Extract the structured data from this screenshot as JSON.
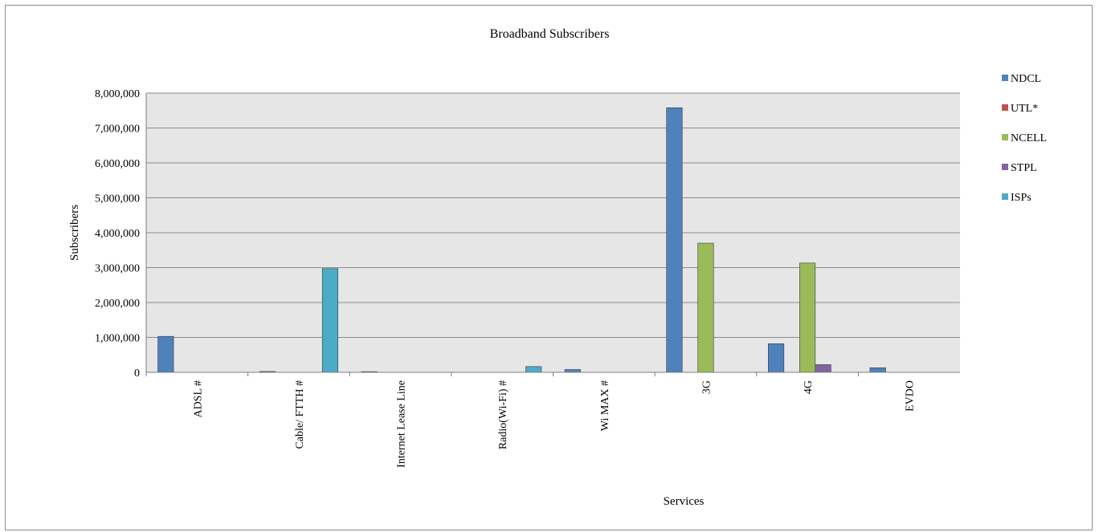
{
  "chart_data": {
    "type": "bar",
    "title": "Broadband Subscribers",
    "xlabel": "Services",
    "ylabel": "Subscribers",
    "ylim": [
      0,
      8000000
    ],
    "yticks": [
      0,
      1000000,
      2000000,
      3000000,
      4000000,
      5000000,
      6000000,
      7000000,
      8000000
    ],
    "ytick_labels": [
      "0",
      "1,000,000",
      "2,000,000",
      "3,000,000",
      "4,000,000",
      "5,000,000",
      "6,000,000",
      "7,000,000",
      "8,000,000"
    ],
    "categories": [
      "ADSL #",
      "Cable/ FTTH #",
      "Internet Lease Line",
      "Radio(Wi-Fi) #",
      "Wi MAX #",
      "3G",
      "4G",
      "EVDO"
    ],
    "grid": true,
    "legend_position": "right",
    "series": [
      {
        "name": "NDCL",
        "color": "#4f81bd",
        "values": [
          1030000,
          25000,
          20000,
          0,
          80000,
          7580000,
          820000,
          130000
        ]
      },
      {
        "name": "UTL*",
        "color": "#c0504d",
        "values": [
          0,
          0,
          0,
          0,
          0,
          0,
          0,
          0
        ]
      },
      {
        "name": "NCELL",
        "color": "#9bbb59",
        "values": [
          0,
          0,
          0,
          0,
          0,
          3700000,
          3130000,
          0
        ]
      },
      {
        "name": "STPL",
        "color": "#8064a2",
        "values": [
          0,
          0,
          0,
          0,
          0,
          0,
          220000,
          0
        ]
      },
      {
        "name": "ISPs",
        "color": "#4bacc6",
        "values": [
          0,
          2970000,
          0,
          165000,
          0,
          0,
          0,
          0
        ]
      }
    ]
  }
}
